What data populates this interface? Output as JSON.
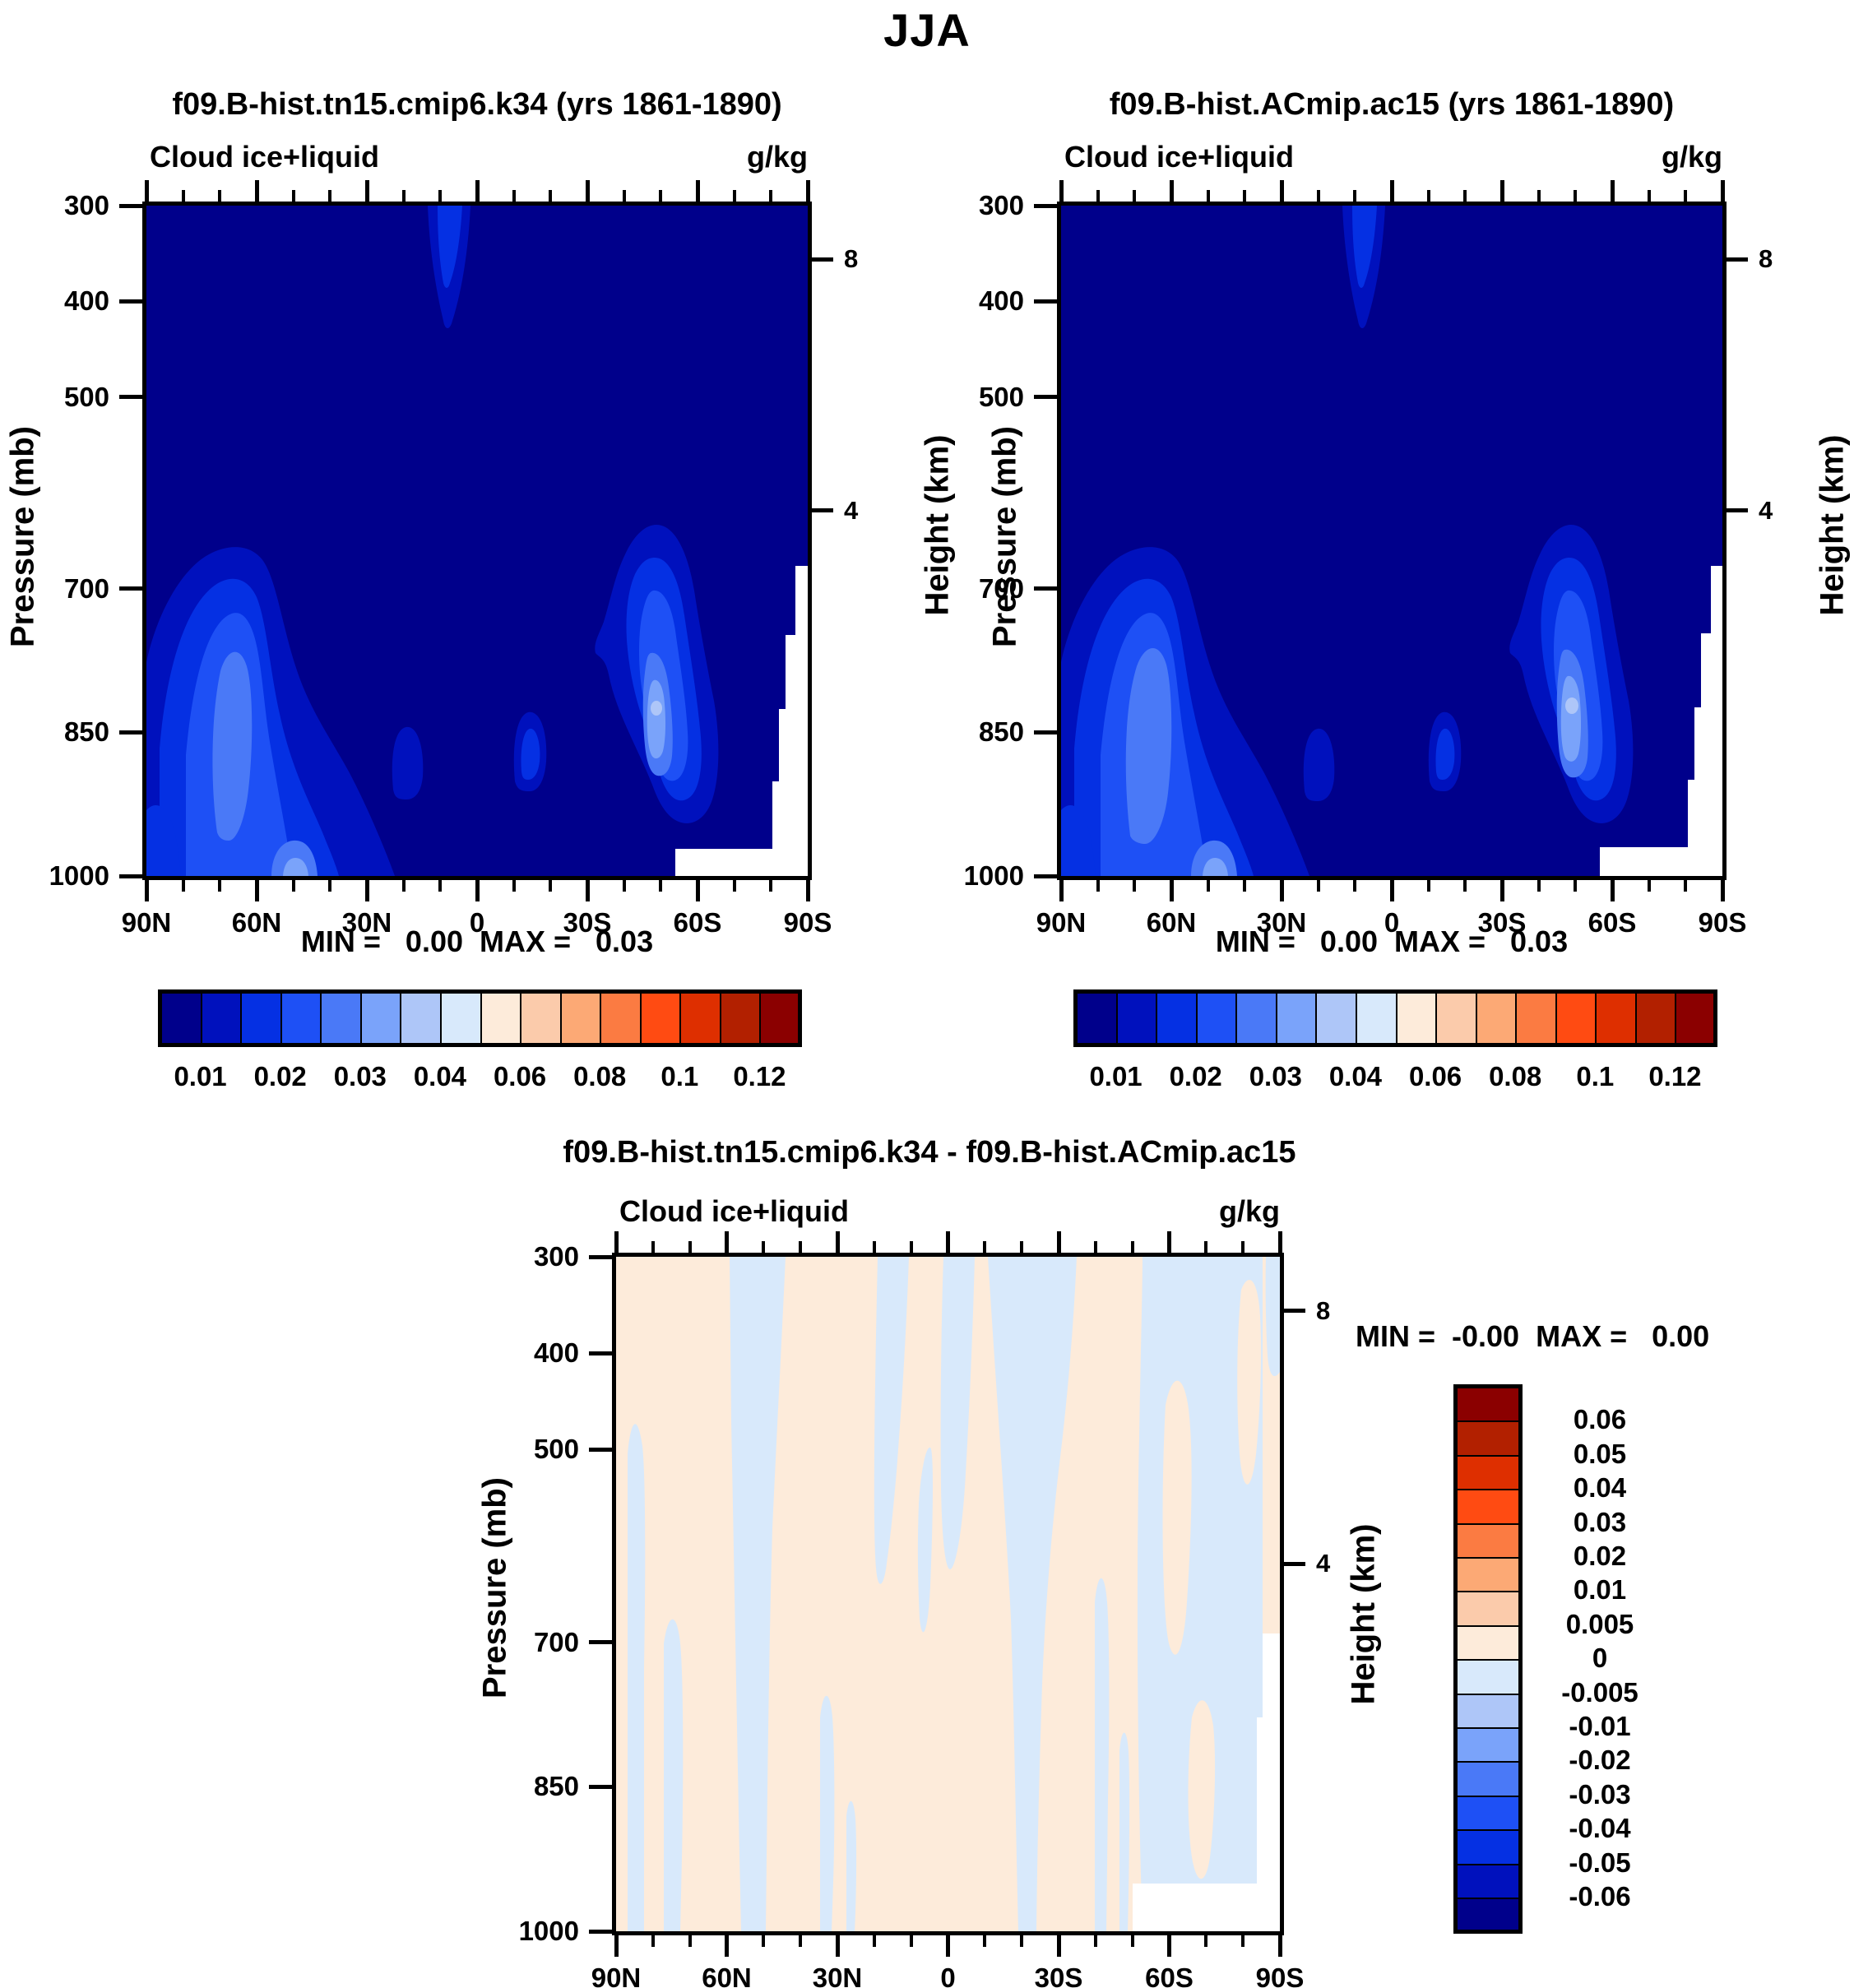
{
  "title": "JJA",
  "palette": {
    "levels16": [
      "#00008B",
      "#0011BD",
      "#0530E3",
      "#1E50F5",
      "#4A79F7",
      "#7AA3FA",
      "#AEC6F8",
      "#D8E9FB",
      "#FDEBDA",
      "#FBCBAB",
      "#FCA975",
      "#FB7B42",
      "#FF4B12",
      "#DE2F00",
      "#B22000",
      "#8B0000"
    ],
    "background": "#ffffff",
    "frame": "#000000"
  },
  "panels": {
    "top_left": {
      "title": "f09.B-hist.tn15.cmip6.k34 (yrs 1861-1890)",
      "field_label": "Cloud ice+liquid",
      "units": "g/kg",
      "stats": "MIN =   0.00  MAX =   0.03"
    },
    "top_right": {
      "title": "f09.B-hist.ACmip.ac15 (yrs 1861-1890)",
      "field_label": "Cloud ice+liquid",
      "units": "g/kg",
      "stats": "MIN =   0.00  MAX =   0.03"
    },
    "bottom": {
      "title": "f09.B-hist.tn15.cmip6.k34 - f09.B-hist.ACmip.ac15",
      "field_label": "Cloud ice+liquid",
      "units": "g/kg",
      "stats": "MIN =  -0.00  MAX =   0.00"
    }
  },
  "axes": {
    "pressure": {
      "label": "Pressure (mb)",
      "ticks": [
        "300",
        "400",
        "500",
        "700",
        "850",
        "1000"
      ],
      "values": [
        300,
        400,
        500,
        700,
        850,
        1000
      ],
      "range": [
        300,
        1000
      ]
    },
    "latitude": {
      "ticks": [
        "90N",
        "60N",
        "30N",
        "0",
        "30S",
        "60S",
        "90S"
      ]
    },
    "height": {
      "label": "Height (km)",
      "ticks": [
        "8",
        "4"
      ],
      "fractions": [
        0.08,
        0.455
      ]
    }
  },
  "colorbar_top": {
    "labels": [
      "0.01",
      "0.02",
      "0.03",
      "0.04",
      "0.06",
      "0.08",
      "0.1",
      "0.12"
    ]
  },
  "colorbar_diff": {
    "labels": [
      "0.06",
      "0.05",
      "0.04",
      "0.03",
      "0.02",
      "0.01",
      "0.005",
      "0",
      "-0.005",
      "-0.01",
      "-0.02",
      "-0.03",
      "-0.04",
      "-0.05",
      "-0.06"
    ]
  },
  "chart_data": [
    {
      "type": "filled_contour",
      "panel": "top_left",
      "title": "f09.B-hist.tn15.cmip6.k34 (yrs 1861-1890)",
      "season": "JJA",
      "variable": "Cloud ice+liquid",
      "units": "g/kg",
      "x_axis": {
        "ticks": [
          "90N",
          "60N",
          "30N",
          "0",
          "30S",
          "60S",
          "90S"
        ],
        "direction": "90N at left, 90S at right"
      },
      "y_axis_left": {
        "label": "Pressure (mb)",
        "ticks": [
          300,
          400,
          500,
          700,
          850,
          1000
        ],
        "orientation": "300 mb at top, 1000 mb at bottom"
      },
      "y_axis_right": {
        "label": "Height (km)",
        "ticks": [
          8,
          4
        ]
      },
      "min": 0.0,
      "max": 0.03,
      "contour_levels": [
        0.01,
        0.015,
        0.02,
        0.025,
        0.03,
        0.035,
        0.04,
        0.05,
        0.06,
        0.07,
        0.08,
        0.09,
        0.1,
        0.11,
        0.12
      ],
      "features": [
        {
          "name": "north-midlatitude-cloud-maximum",
          "lat_range": "40N-90N",
          "pressure_range_mb": [
            650,
            1000
          ],
          "peak_value_g_per_kg": 0.03,
          "peak_location": {
            "lat": "60N",
            "pressure_mb": 850
          }
        },
        {
          "name": "south-midlatitude-cloud-maximum",
          "lat_range": "30S-65S",
          "pressure_range_mb": [
            620,
            950
          ],
          "peak_value_g_per_kg": 0.035,
          "peak_location": {
            "lat": "47S",
            "pressure_mb": 855
          }
        },
        {
          "name": "equatorial-upper-troposphere-plume",
          "lat": "5N",
          "pressure_range_mb": [
            300,
            390
          ],
          "value_g_per_kg": 0.02
        },
        {
          "name": "tropical-boundary-layer-blobs",
          "lats": [
            "20N",
            "13S"
          ],
          "pressure_mb": 940,
          "value_g_per_kg": 0.015
        },
        {
          "name": "antarctic-topography-mask",
          "lat_range": "55S-90S",
          "pressure_range_mb": [
            700,
            1000
          ],
          "rendered": "white"
        }
      ]
    },
    {
      "type": "filled_contour",
      "panel": "top_right",
      "title": "f09.B-hist.ACmip.ac15 (yrs 1861-1890)",
      "season": "JJA",
      "variable": "Cloud ice+liquid",
      "units": "g/kg",
      "x_axis": {
        "ticks": [
          "90N",
          "60N",
          "30N",
          "0",
          "30S",
          "60S",
          "90S"
        ],
        "direction": "90N at left, 90S at right"
      },
      "y_axis_left": {
        "label": "Pressure (mb)",
        "ticks": [
          300,
          400,
          500,
          700,
          850,
          1000
        ],
        "orientation": "300 mb at top, 1000 mb at bottom"
      },
      "y_axis_right": {
        "label": "Height (km)",
        "ticks": [
          8,
          4
        ]
      },
      "min": 0.0,
      "max": 0.03,
      "contour_levels": [
        0.01,
        0.015,
        0.02,
        0.025,
        0.03,
        0.035,
        0.04,
        0.05,
        0.06,
        0.07,
        0.08,
        0.09,
        0.1,
        0.11,
        0.12
      ],
      "features": [
        {
          "name": "north-midlatitude-cloud-maximum",
          "lat_range": "40N-90N",
          "pressure_range_mb": [
            650,
            1000
          ],
          "peak_value_g_per_kg": 0.03,
          "peak_location": {
            "lat": "60N",
            "pressure_mb": 850
          }
        },
        {
          "name": "south-midlatitude-cloud-maximum",
          "lat_range": "30S-65S",
          "pressure_range_mb": [
            620,
            950
          ],
          "peak_value_g_per_kg": 0.035,
          "peak_location": {
            "lat": "47S",
            "pressure_mb": 855
          }
        },
        {
          "name": "equatorial-upper-troposphere-plume",
          "lat": "5N",
          "pressure_range_mb": [
            300,
            390
          ],
          "value_g_per_kg": 0.02
        },
        {
          "name": "tropical-boundary-layer-blobs",
          "lats": [
            "20N",
            "13S"
          ],
          "pressure_mb": 940,
          "value_g_per_kg": 0.015
        },
        {
          "name": "antarctic-topography-mask",
          "lat_range": "55S-90S",
          "pressure_range_mb": [
            700,
            1000
          ],
          "rendered": "white"
        }
      ]
    },
    {
      "type": "filled_contour_difference",
      "panel": "bottom",
      "title": "f09.B-hist.tn15.cmip6.k34 - f09.B-hist.ACmip.ac15",
      "season": "JJA",
      "variable": "Cloud ice+liquid",
      "units": "g/kg",
      "x_axis": {
        "ticks": [
          "90N",
          "60N",
          "30N",
          "0",
          "30S",
          "60S",
          "90S"
        ],
        "direction": "90N at left, 90S at right"
      },
      "y_axis_left": {
        "label": "Pressure (mb)",
        "ticks": [
          300,
          400,
          500,
          700,
          850,
          1000
        ]
      },
      "y_axis_right": {
        "label": "Height (km)",
        "ticks": [
          8,
          4
        ]
      },
      "min": -0.0,
      "max": 0.0,
      "contour_levels": [
        -0.06,
        -0.05,
        -0.04,
        -0.03,
        -0.02,
        -0.01,
        -0.005,
        0,
        0.005,
        0.01,
        0.02,
        0.03,
        0.04,
        0.05,
        0.06
      ],
      "description": "Differences are near zero everywhere: field alternates between weak positive patches (0 to 0.005 g/kg, pale orange) and weak negative vertical bands (-0.005 to 0 g/kg, pale blue); white Antarctic topography mask at bottom right."
    }
  ]
}
